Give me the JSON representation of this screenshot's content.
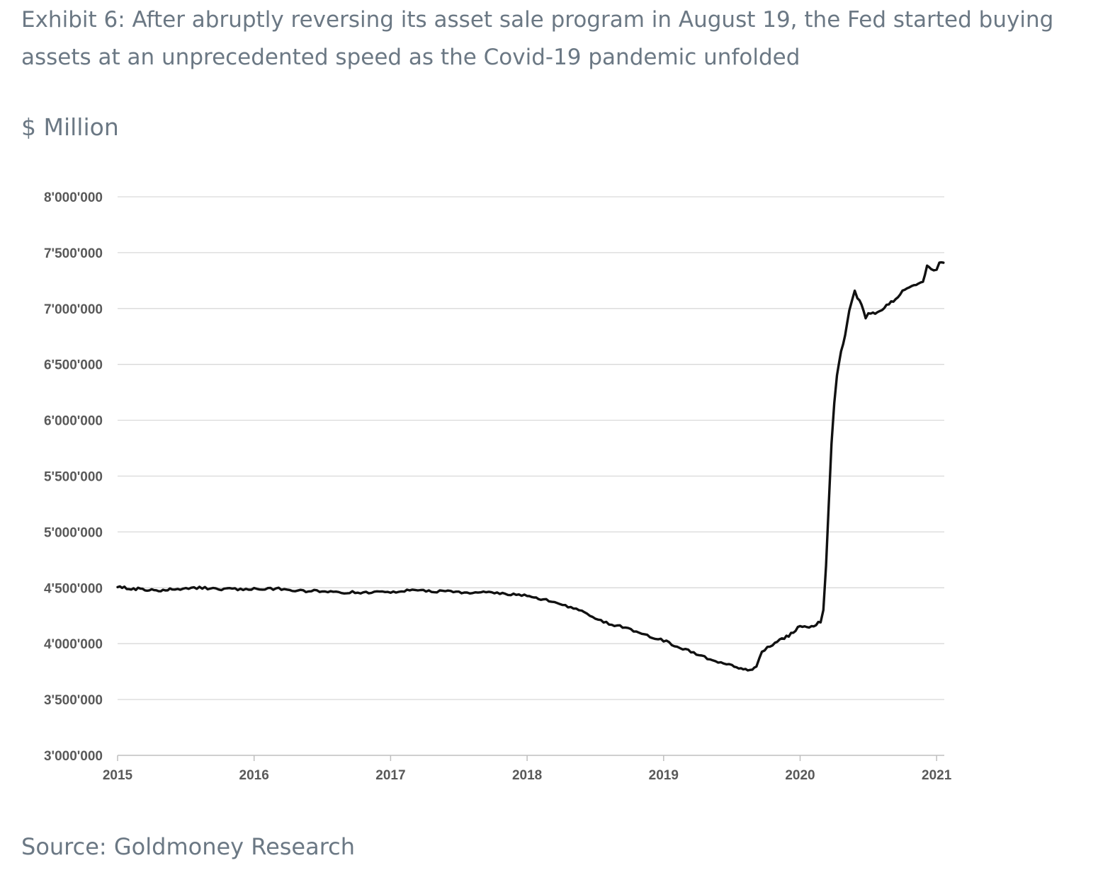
{
  "title": "Exhibit 6: After abruptly reversing its asset sale program in August 19, the Fed started buying assets at an unprecedented speed as the Covid-19 pandemic unfolded",
  "unit_label": "$ Million",
  "source": "Source: Goldmoney Research",
  "colors": {
    "text": "#6b7884",
    "line": "#111111",
    "grid": "#d9d9d9",
    "tick_text": "#595959"
  },
  "chart_data": {
    "type": "line",
    "title": "",
    "xlabel": "",
    "ylabel": "$ Million",
    "grid": true,
    "legend": "none",
    "x_axis": {
      "ticks": [
        "2015",
        "2016",
        "2017",
        "2018",
        "2019",
        "2020",
        "2021"
      ],
      "range": [
        2015.0,
        2021.07
      ]
    },
    "y_axis": {
      "ticks": [
        "3'000'000",
        "3'500'000",
        "4'000'000",
        "4'500'000",
        "5'000'000",
        "5'500'000",
        "6'000'000",
        "6'500'000",
        "7'000'000",
        "7'500'000",
        "8'000'000"
      ],
      "ylim": [
        3000000,
        8000000
      ]
    },
    "series": [
      {
        "x": [
          2015.0,
          2015.05,
          2015.1,
          2015.15,
          2015.2,
          2015.25,
          2015.3,
          2015.35,
          2015.4,
          2015.5,
          2015.6,
          2015.7,
          2015.8,
          2015.9,
          2016.0,
          2016.1,
          2016.2,
          2016.3,
          2016.4,
          2016.5,
          2016.6,
          2016.7,
          2016.8,
          2016.9,
          2017.0,
          2017.1,
          2017.2,
          2017.3,
          2017.4,
          2017.5,
          2017.6,
          2017.7,
          2017.8,
          2017.9,
          2018.0,
          2018.05,
          2018.1,
          2018.2,
          2018.3,
          2018.4,
          2018.5,
          2018.6,
          2018.7,
          2018.8,
          2018.9,
          2019.0,
          2019.1,
          2019.2,
          2019.3,
          2019.4,
          2019.5,
          2019.55,
          2019.6,
          2019.65,
          2019.68,
          2019.72,
          2019.78,
          2019.85,
          2019.9,
          2019.95,
          2020.0,
          2020.05,
          2020.1,
          2020.15,
          2020.17,
          2020.19,
          2020.21,
          2020.23,
          2020.25,
          2020.27,
          2020.3,
          2020.33,
          2020.36,
          2020.38,
          2020.4,
          2020.42,
          2020.45,
          2020.48,
          2020.5,
          2020.55,
          2020.6,
          2020.65,
          2020.7,
          2020.75,
          2020.8,
          2020.85,
          2020.9,
          2020.93,
          2020.96,
          2021.0,
          2021.02,
          2021.05
        ],
        "values": [
          4510000,
          4500000,
          4490000,
          4490000,
          4480000,
          4490000,
          4470000,
          4480000,
          4490000,
          4490000,
          4500000,
          4490000,
          4490000,
          4490000,
          4490000,
          4490000,
          4490000,
          4480000,
          4470000,
          4470000,
          4460000,
          4460000,
          4460000,
          4460000,
          4460000,
          4470000,
          4480000,
          4470000,
          4470000,
          4460000,
          4460000,
          4460000,
          4450000,
          4440000,
          4430000,
          4420000,
          4400000,
          4370000,
          4330000,
          4290000,
          4230000,
          4180000,
          4150000,
          4100000,
          4060000,
          4030000,
          3970000,
          3930000,
          3880000,
          3840000,
          3800000,
          3780000,
          3770000,
          3760000,
          3800000,
          3920000,
          3980000,
          4030000,
          4060000,
          4100000,
          4160000,
          4150000,
          4160000,
          4200000,
          4300000,
          4700000,
          5250000,
          5800000,
          6150000,
          6400000,
          6620000,
          6760000,
          6980000,
          7080000,
          7170000,
          7100000,
          7040000,
          6920000,
          6950000,
          6960000,
          6990000,
          7040000,
          7080000,
          7150000,
          7190000,
          7220000,
          7250000,
          7380000,
          7350000,
          7340000,
          7410000,
          7410000
        ]
      }
    ]
  }
}
